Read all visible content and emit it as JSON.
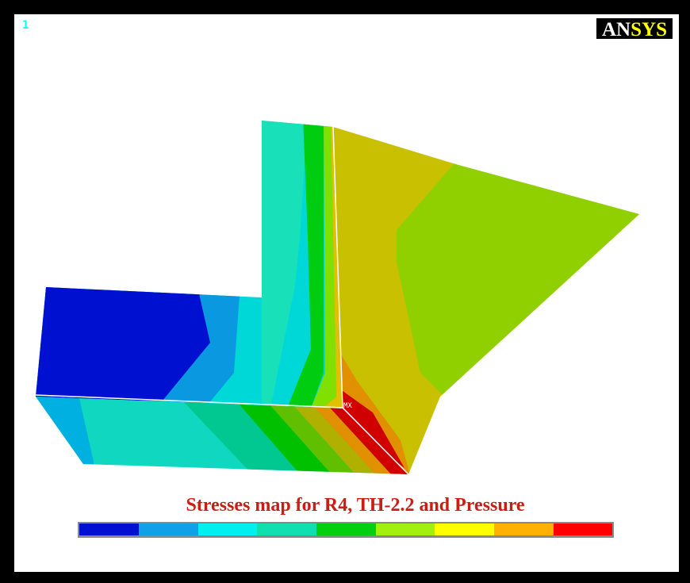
{
  "viewport": {
    "window_number": "1",
    "logo": "ANSYS"
  },
  "plot": {
    "max_marker": "MX",
    "caption": "Stresses map for R4, TH-2.2 and Pressure"
  }
}
